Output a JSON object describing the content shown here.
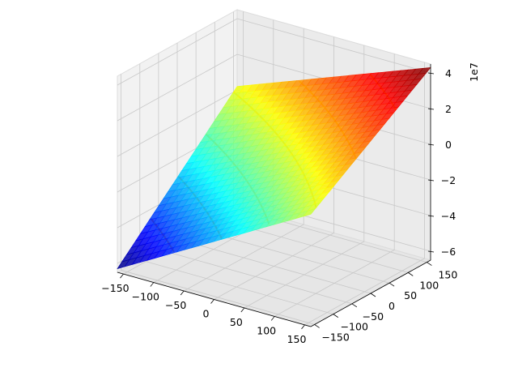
{
  "chart_data": {
    "type": "surface",
    "title": "",
    "xlabel": "",
    "ylabel": "",
    "zlabel": "",
    "x_ticks": [
      "−150",
      "−100",
      "−50",
      "0",
      "50",
      "100",
      "150"
    ],
    "x_tick_values": [
      -150,
      -100,
      -50,
      0,
      50,
      100,
      150
    ],
    "y_ticks": [
      "−150",
      "−100",
      "−50",
      "0",
      "50",
      "100",
      "150"
    ],
    "y_tick_values": [
      -150,
      -100,
      -50,
      0,
      50,
      100,
      150
    ],
    "z_ticks": [
      "−6",
      "−4",
      "−2",
      "0",
      "2",
      "4"
    ],
    "z_tick_values": [
      -6,
      -4,
      -2,
      0,
      2,
      4
    ],
    "z_offset_label": "1e7",
    "xlim": [
      -160,
      160
    ],
    "ylim": [
      -160,
      160
    ],
    "zlim": [
      -6.5,
      4.5
    ],
    "z_scale": 10000000,
    "surface": {
      "x_range": [
        -160,
        160
      ],
      "y_range": [
        -160,
        160
      ],
      "z_corners": {
        "x_min_y_min": -6.3,
        "x_max_y_min": -0.2,
        "x_min_y_max": 0.2,
        "x_max_y_max": 4.3
      },
      "colormap": "jet"
    },
    "contours": {
      "colormap": "autumn",
      "levels_1e7": [
        -4.5,
        -3.0,
        -1.5,
        0.0,
        1.5,
        3.0
      ]
    },
    "grid": true
  }
}
